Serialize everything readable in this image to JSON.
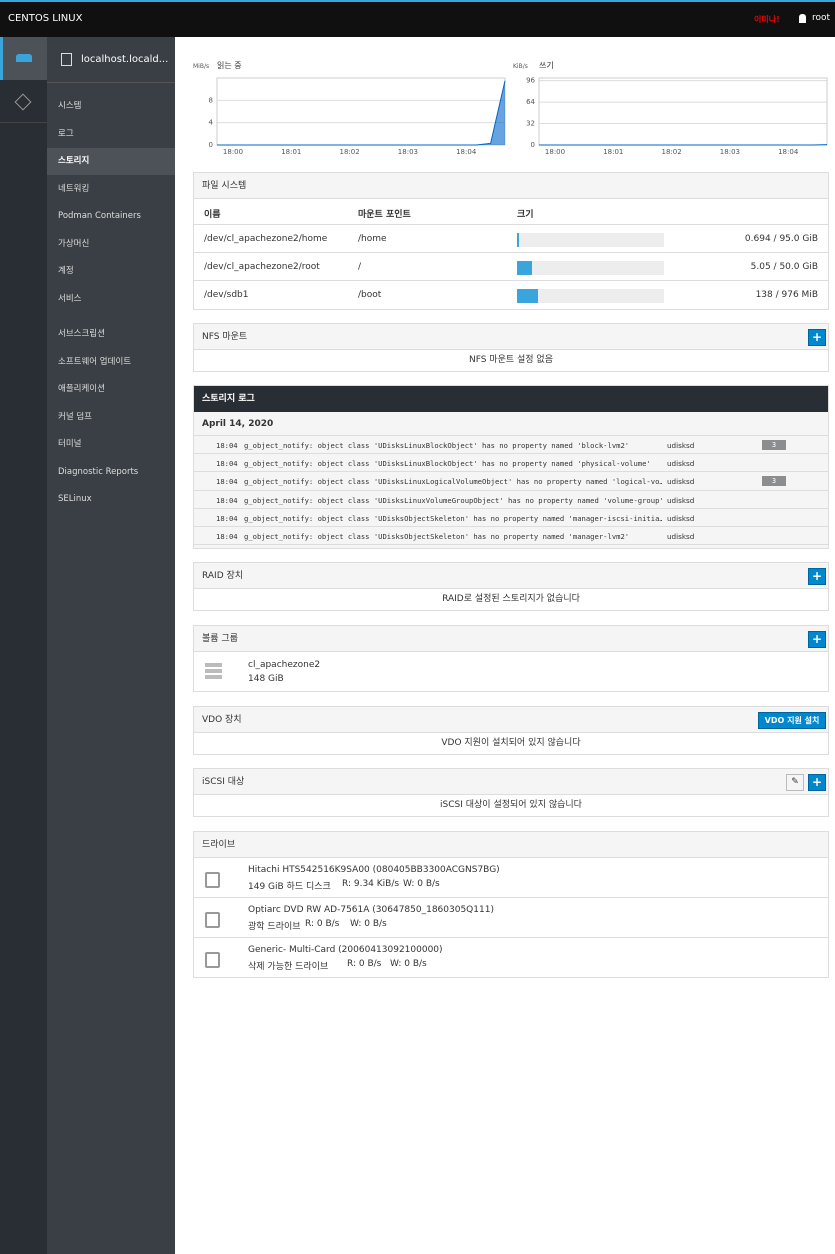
{
  "topbar": {
    "brand": "CENTOS LINUX",
    "warning": "이미나!",
    "user": "root"
  },
  "host": "localhost.locald...",
  "nav": [
    "시스템",
    "로그",
    "스토리지",
    "네트워킹",
    "Podman Containers",
    "가상머신",
    "계정",
    "서비스",
    "서브스크립션",
    "소프트웨어 업데이트",
    "애플리케이션",
    "커널 덤프",
    "터미널",
    "Diagnostic Reports",
    "SELinux"
  ],
  "charts": [
    {
      "type": "line",
      "unit": "MiB/s",
      "title": "읽는 중",
      "color": "#0066cc",
      "xticks": [
        "18:00",
        "18:01",
        "18:02",
        "18:03",
        "18:04"
      ],
      "ylim": [
        0,
        12
      ],
      "yticks": [
        0,
        4,
        8
      ],
      "values": [
        0,
        0,
        0,
        0,
        0,
        0,
        0,
        0,
        0,
        0,
        0,
        0,
        0,
        0,
        0,
        0,
        0,
        0,
        0,
        0.3,
        11.5
      ]
    },
    {
      "type": "line",
      "unit": "KiB/s",
      "title": "쓰기",
      "color": "#0066cc",
      "xticks": [
        "18:00",
        "18:01",
        "18:02",
        "18:03",
        "18:04"
      ],
      "ylim": [
        0,
        100
      ],
      "yticks": [
        0,
        32,
        64,
        96
      ],
      "values": [
        0,
        0,
        0,
        0,
        0,
        0,
        0,
        0,
        0,
        0,
        0,
        0,
        0,
        0,
        0,
        0,
        0,
        0,
        0,
        0,
        0.6
      ]
    }
  ],
  "filesystems": {
    "title": "파일 시스템",
    "columns": [
      "이름",
      "마운트 포인트",
      "크기"
    ],
    "rows": [
      {
        "name": "/dev/cl_apachezone2/home",
        "mount": "/home",
        "used": 0.694,
        "total": 95.0,
        "size_label": "0.694 / 95.0 GiB"
      },
      {
        "name": "/dev/cl_apachezone2/root",
        "mount": "/",
        "used": 5.05,
        "total": 50.0,
        "size_label": "5.05 / 50.0 GiB"
      },
      {
        "name": "/dev/sdb1",
        "mount": "/boot",
        "used": 138,
        "total": 976,
        "size_label": "138 / 976 MiB"
      }
    ]
  },
  "nfs": {
    "title": "NFS 마운트",
    "empty": "NFS 마운트 설정 없음"
  },
  "storage_log": {
    "title": "스토리지 로그",
    "date": "April 14, 2020",
    "entries": [
      {
        "time": "18:04",
        "message": "g_object_notify: object class 'UDisksLinuxBlockObject' has no property named 'block-lvm2'",
        "source": "udisksd",
        "count": 3
      },
      {
        "time": "18:04",
        "message": "g_object_notify: object class 'UDisksLinuxBlockObject' has no property named 'physical-volume'",
        "source": "udisksd"
      },
      {
        "time": "18:04",
        "message": "g_object_notify: object class 'UDisksLinuxLogicalVolumeObject' has no property named 'logical-vo…",
        "source": "udisksd",
        "count": 3
      },
      {
        "time": "18:04",
        "message": "g_object_notify: object class 'UDisksLinuxVolumeGroupObject' has no property named 'volume-group'",
        "source": "udisksd"
      },
      {
        "time": "18:04",
        "message": "g_object_notify: object class 'UDisksObjectSkeleton' has no property named 'manager-iscsi-initia…",
        "source": "udisksd"
      },
      {
        "time": "18:04",
        "message": "g_object_notify: object class 'UDisksObjectSkeleton' has no property named 'manager-lvm2'",
        "source": "udisksd"
      }
    ]
  },
  "raid": {
    "title": "RAID 장치",
    "empty": "RAID로 설정된 스토리지가 없습니다"
  },
  "volume_groups": {
    "title": "볼륨 그룹",
    "items": [
      {
        "name": "cl_apachezone2",
        "size": "148 GiB"
      }
    ]
  },
  "vdo": {
    "title": "VDO 장치",
    "button": "VDO 지원 설치",
    "empty": "VDO 지원이 설치되어 있지 않습니다"
  },
  "iscsi": {
    "title": "iSCSI 대상",
    "empty": "iSCSI 대상이 설정되어 있지 않습니다"
  },
  "drives": {
    "title": "드라이브",
    "items": [
      {
        "name": "Hitachi HTS542516K9SA00 (080405BB3300ACGNS7BG)",
        "kind": "149 GiB 하드 디스크",
        "read": "R: 9.34 KiB/s",
        "write": "W: 0 B/s"
      },
      {
        "name": "Optiarc DVD RW AD-7561A (30647850_1860305Q111)",
        "kind": "광학 드라이브",
        "read": "R: 0 B/s",
        "write": "W: 0 B/s"
      },
      {
        "name": "Generic- Multi-Card (20060413092100000)",
        "kind": "삭제 가능한 드라이브",
        "read": "R: 0 B/s",
        "write": "W: 0 B/s"
      }
    ]
  }
}
